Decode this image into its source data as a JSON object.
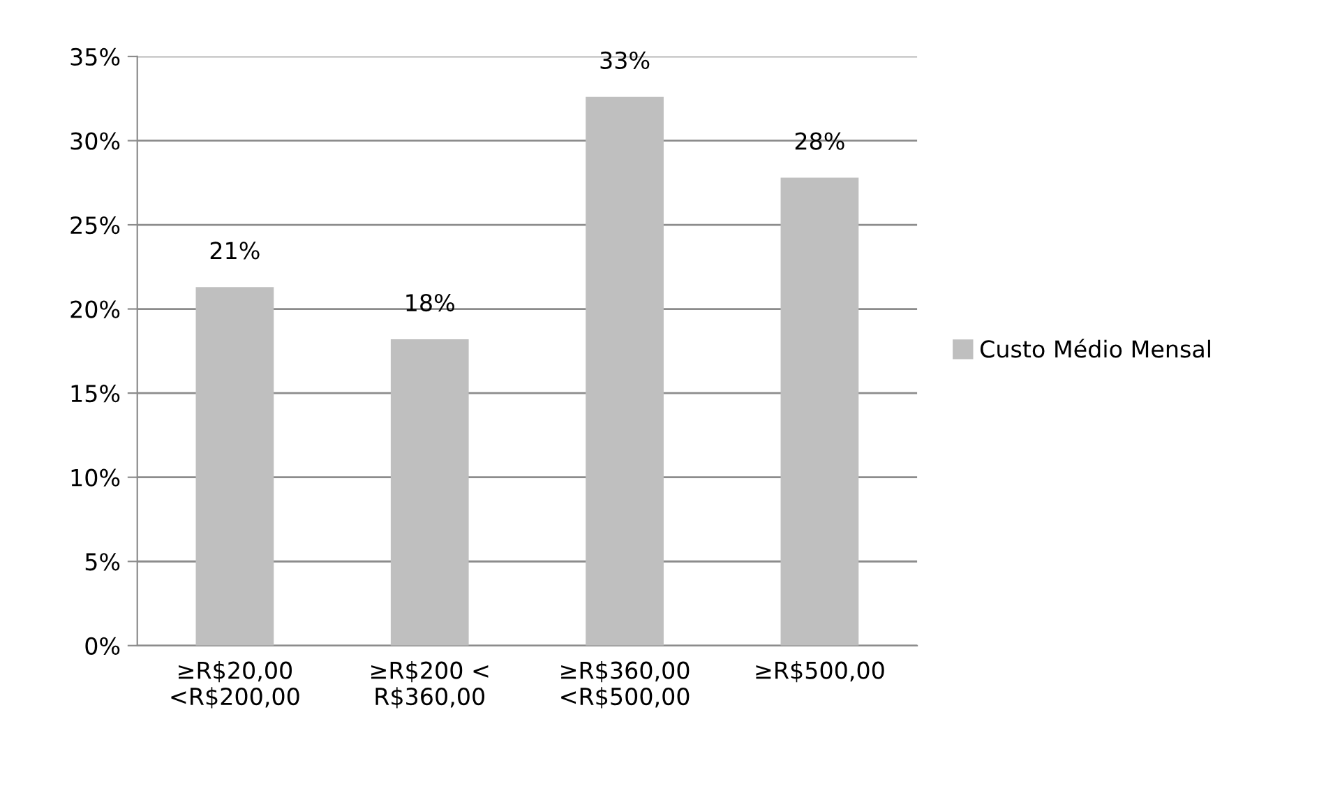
{
  "chart_data": {
    "type": "bar",
    "categories": [
      "≥R$20,00\n<R$200,00",
      "≥R$200 <\nR$360,00",
      "≥R$360,00\n<R$500,00",
      "≥R$500,00"
    ],
    "series": [
      {
        "name": "Custo Médio Mensal",
        "color": "#bfbfbf",
        "values": [
          21.3,
          18.2,
          32.6,
          27.8
        ],
        "value_labels": [
          "21%",
          "18%",
          "33%",
          "28%"
        ]
      }
    ],
    "ylim": [
      0,
      35
    ],
    "yticks": [
      {
        "value": 0,
        "label": "0%"
      },
      {
        "value": 5,
        "label": "5%"
      },
      {
        "value": 10,
        "label": "10%"
      },
      {
        "value": 15,
        "label": "15%"
      },
      {
        "value": 20,
        "label": "20%"
      },
      {
        "value": 25,
        "label": "25%"
      },
      {
        "value": 30,
        "label": "30%"
      },
      {
        "value": 35,
        "label": "35%"
      }
    ],
    "grid": "y",
    "legend": "right"
  }
}
